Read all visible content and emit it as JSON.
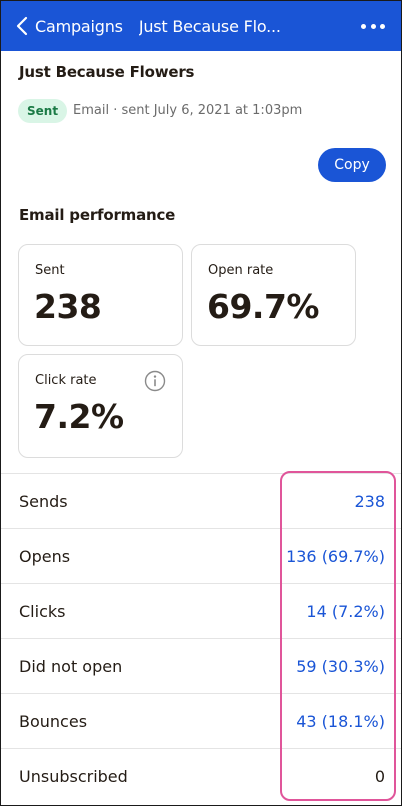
{
  "header": {
    "back_label": "Campaigns",
    "title": "Just Because Flo...",
    "accent": "#1a55d6"
  },
  "campaign": {
    "name": "Just Because Flowers",
    "status": "Sent",
    "meta": "Email · sent July 6, 2021 at 1:03pm",
    "copy_label": "Copy"
  },
  "performance": {
    "title": "Email performance",
    "cards": [
      {
        "label": "Sent",
        "value": "238"
      },
      {
        "label": "Open rate",
        "value": "69.7%"
      },
      {
        "label": "Click rate",
        "value": "7.2%"
      }
    ]
  },
  "stats": [
    {
      "label": "Sends",
      "value": "238"
    },
    {
      "label": "Opens",
      "value": "136 (69.7%)"
    },
    {
      "label": "Clicks",
      "value": "14 (7.2%)"
    },
    {
      "label": "Did not open",
      "value": "59 (30.3%)"
    },
    {
      "label": "Bounces",
      "value": "43 (18.1%)"
    },
    {
      "label": "Unsubscribed",
      "value": "0"
    }
  ]
}
